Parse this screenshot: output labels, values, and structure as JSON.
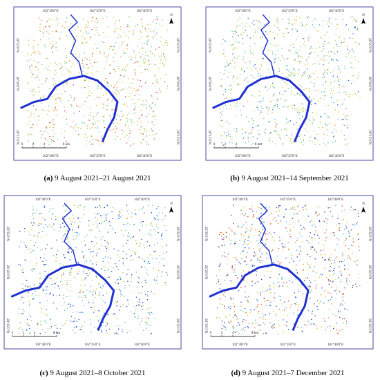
{
  "panels": [
    {
      "caption_label": "(a)",
      "caption_text": "9 August 2021–21 August 2021",
      "top_lon": [
        "102°30'0\"E",
        "102°35'0\"E",
        "102°40'0\"E"
      ],
      "bottom_lon": [
        "102°30'0\"E",
        "102°35'0\"E",
        "102°40'0\"E"
      ],
      "left_lat": [
        "26°25'0\"N",
        "26°20'0\"N",
        "26°15'0\"N"
      ],
      "right_lat": [
        "26°25'0\"N",
        "26°20'0\"N",
        "26°15'0\"N"
      ],
      "scale": [
        "0",
        "2",
        "4",
        "8 km"
      ],
      "north": "N"
    },
    {
      "caption_label": "(b)",
      "caption_text": "9 August 2021–14 September 2021",
      "top_lon": [
        "102°30'0\"E",
        "102°35'0\"E",
        "102°40'0\"E"
      ],
      "bottom_lon": [
        "102°30'0\"E",
        "102°35'0\"E",
        "102°40'0\"E"
      ],
      "left_lat": [
        "26°25'0\"N",
        "26°20'0\"N",
        "26°15'0\"N"
      ],
      "right_lat": [
        "26°25'0\"N",
        "26°20'0\"N",
        "26°15'0\"N"
      ],
      "scale": [
        "0",
        "2",
        "4",
        "8 km"
      ],
      "north": "N"
    },
    {
      "caption_label": "(c)",
      "caption_text": "9 August 2021–8 October 2021",
      "top_lon": [
        "102°30'0\"E",
        "102°35'0\"E",
        "102°40'0\"E"
      ],
      "bottom_lon": [
        "102°30'0\"E",
        "102°35'0\"E",
        "102°40'0\"E"
      ],
      "left_lat": [
        "26°25'0\"N",
        "26°20'0\"N",
        "26°15'0\"N"
      ],
      "right_lat": [
        "26°25'0\"N",
        "26°20'0\"N",
        "26°15'0\"N"
      ],
      "scale": [
        "0",
        "2",
        "4",
        "8 km"
      ],
      "north": "N"
    },
    {
      "caption_label": "(d)",
      "caption_text": "9 August 2021–7 December 2021",
      "top_lon": [
        "102°30'0\"E",
        "102°35'0\"E",
        "102°40'0\"E"
      ],
      "bottom_lon": [
        "102°30'0\"E",
        "102°35'0\"E",
        "102°40'0\"E"
      ],
      "left_lat": [
        "26°25'0\"N",
        "26°20'0\"N",
        "26°15'0\"N"
      ],
      "right_lat": [
        "26°25'0\"N",
        "26°20'0\"N",
        "26°15'0\"N"
      ],
      "scale": [
        "0",
        "2",
        "4",
        "8 km"
      ],
      "north": "N"
    }
  ]
}
